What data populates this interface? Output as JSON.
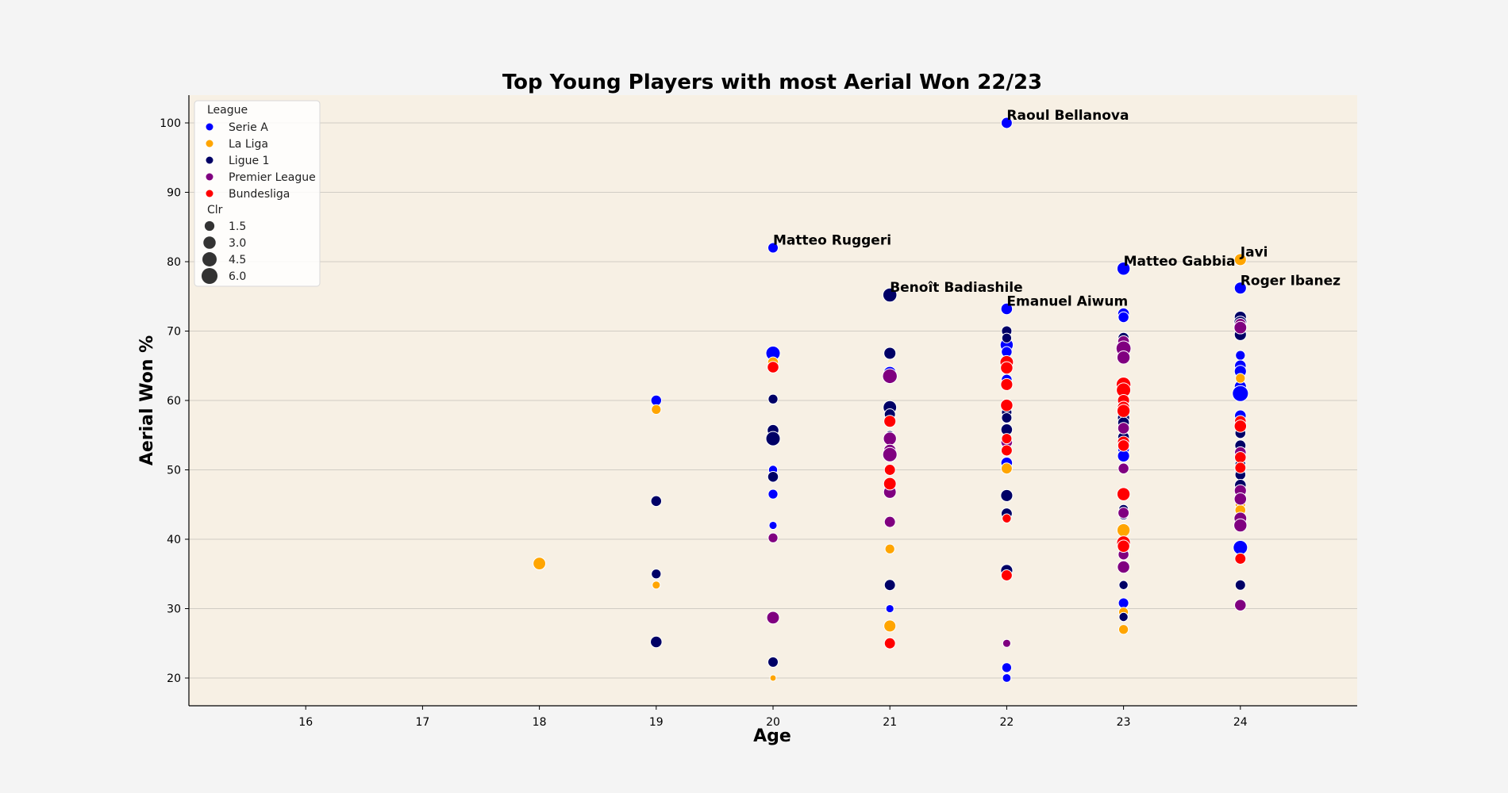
{
  "chart_data": {
    "type": "scatter",
    "title": "Top Young Players with most Aerial Won 22/23",
    "xlabel": "Age",
    "ylabel": "Aerial Won %",
    "xlim": [
      15,
      25
    ],
    "ylim": [
      16,
      104
    ],
    "x_ticks": [
      16,
      17,
      18,
      19,
      20,
      21,
      22,
      23,
      24
    ],
    "y_ticks": [
      20,
      30,
      40,
      50,
      60,
      70,
      80,
      90,
      100
    ],
    "grid": "horizontal",
    "legend_position": "top-left",
    "colors": {
      "background": "#f4f4f4",
      "plot_background": "#f7f0e4",
      "grid": "#d0ccc4"
    },
    "legend": {
      "hue_title": "League",
      "size_title": "Clr",
      "size_entries": [
        1.5,
        3.0,
        4.5,
        6.0
      ]
    },
    "series": [
      {
        "name": "Serie A",
        "color": "#0000ff",
        "points": [
          [
            19,
            60.0,
            2.0
          ],
          [
            20,
            82.0,
            1.8
          ],
          [
            20,
            66.8,
            4.5
          ],
          [
            20,
            50.0,
            1.2
          ],
          [
            20,
            46.5,
            1.5
          ],
          [
            20,
            42.0,
            0.8
          ],
          [
            21,
            64.0,
            3.2
          ],
          [
            21,
            30.0,
            0.8
          ],
          [
            22,
            100.0,
            2.2
          ],
          [
            22,
            73.2,
            2.5
          ],
          [
            22,
            68.0,
            3.5
          ],
          [
            22,
            67.0,
            2.0
          ],
          [
            22,
            63.0,
            2.0
          ],
          [
            22,
            51.0,
            2.5
          ],
          [
            22,
            53.0,
            1.5
          ],
          [
            22,
            21.5,
            1.5
          ],
          [
            22,
            20.0,
            1.0
          ],
          [
            23,
            79.0,
            3.5
          ],
          [
            23,
            72.5,
            2.5
          ],
          [
            23,
            72.0,
            2.0
          ],
          [
            23,
            53.0,
            2.5
          ],
          [
            23,
            52.0,
            2.8
          ],
          [
            23,
            30.8,
            1.8
          ],
          [
            24,
            76.2,
            2.8
          ],
          [
            24,
            66.5,
            1.5
          ],
          [
            24,
            65.0,
            2.5
          ],
          [
            24,
            64.2,
            2.8
          ],
          [
            24,
            62.0,
            2.8
          ],
          [
            24,
            61.0,
            6.0
          ],
          [
            24,
            57.8,
            2.5
          ],
          [
            24,
            56.8,
            2.0
          ],
          [
            24,
            50.0,
            2.2
          ],
          [
            24,
            38.8,
            4.5
          ]
        ]
      },
      {
        "name": "La Liga",
        "color": "#ffa500",
        "points": [
          [
            18,
            36.5,
            3.2
          ],
          [
            19,
            58.7,
            1.5
          ],
          [
            19,
            33.4,
            0.8
          ],
          [
            20,
            65.5,
            2.0
          ],
          [
            20,
            20.0,
            0.3
          ],
          [
            21,
            38.6,
            1.5
          ],
          [
            21,
            27.5,
            2.8
          ],
          [
            22,
            50.2,
            2.2
          ],
          [
            23,
            68.0,
            2.0
          ],
          [
            23,
            41.3,
            3.5
          ],
          [
            23,
            29.5,
            1.5
          ],
          [
            23,
            27.0,
            1.5
          ],
          [
            24,
            80.3,
            2.8
          ],
          [
            24,
            63.2,
            1.5
          ],
          [
            24,
            45.0,
            1.8
          ],
          [
            24,
            44.2,
            2.0
          ]
        ]
      },
      {
        "name": "Ligue 1",
        "color": "#000066",
        "points": [
          [
            19,
            45.5,
            2.0
          ],
          [
            19,
            35.0,
            1.5
          ],
          [
            19,
            25.2,
            2.5
          ],
          [
            20,
            60.2,
            1.5
          ],
          [
            20,
            55.7,
            2.5
          ],
          [
            20,
            54.5,
            4.5
          ],
          [
            20,
            49.0,
            2.0
          ],
          [
            20,
            22.3,
            1.8
          ],
          [
            21,
            75.2,
            4.2
          ],
          [
            21,
            66.8,
            2.8
          ],
          [
            21,
            59.0,
            3.8
          ],
          [
            21,
            58.0,
            2.2
          ],
          [
            21,
            55.0,
            1.2
          ],
          [
            21,
            33.4,
            2.2
          ],
          [
            22,
            70.0,
            1.8
          ],
          [
            22,
            69.0,
            1.5
          ],
          [
            22,
            64.8,
            2.8
          ],
          [
            22,
            58.3,
            1.8
          ],
          [
            22,
            57.5,
            1.8
          ],
          [
            22,
            55.8,
            2.5
          ],
          [
            22,
            46.3,
            2.8
          ],
          [
            22,
            43.7,
            2.2
          ],
          [
            22,
            35.5,
            2.8
          ],
          [
            23,
            69.0,
            2.2
          ],
          [
            23,
            57.5,
            2.8
          ],
          [
            23,
            56.8,
            2.5
          ],
          [
            23,
            54.7,
            2.5
          ],
          [
            23,
            44.3,
            1.5
          ],
          [
            23,
            43.5,
            1.5
          ],
          [
            23,
            33.4,
            1.2
          ],
          [
            23,
            28.8,
            1.2
          ],
          [
            24,
            72.0,
            2.8
          ],
          [
            24,
            71.2,
            3.5
          ],
          [
            24,
            69.5,
            2.8
          ],
          [
            24,
            55.3,
            2.0
          ],
          [
            24,
            53.5,
            2.2
          ],
          [
            24,
            50.8,
            2.0
          ],
          [
            24,
            49.3,
            2.0
          ],
          [
            24,
            47.8,
            2.5
          ],
          [
            24,
            33.4,
            1.8
          ]
        ]
      },
      {
        "name": "Premier League",
        "color": "#800080",
        "points": [
          [
            20,
            40.2,
            1.5
          ],
          [
            20,
            28.7,
            3.2
          ],
          [
            21,
            63.5,
            4.8
          ],
          [
            21,
            54.5,
            3.5
          ],
          [
            21,
            52.8,
            3.0
          ],
          [
            21,
            52.2,
            4.5
          ],
          [
            21,
            46.8,
            3.2
          ],
          [
            21,
            42.5,
            2.2
          ],
          [
            22,
            54.0,
            2.5
          ],
          [
            22,
            25.0,
            0.8
          ],
          [
            23,
            68.5,
            2.5
          ],
          [
            23,
            67.5,
            5.0
          ],
          [
            23,
            66.2,
            3.5
          ],
          [
            23,
            56.0,
            2.5
          ],
          [
            23,
            50.2,
            2.0
          ],
          [
            23,
            43.8,
            2.2
          ],
          [
            23,
            37.8,
            2.0
          ],
          [
            23,
            36.0,
            3.0
          ],
          [
            24,
            71.0,
            2.5
          ],
          [
            24,
            70.5,
            3.2
          ],
          [
            24,
            52.5,
            2.5
          ],
          [
            24,
            47.0,
            2.8
          ],
          [
            24,
            45.8,
            3.0
          ],
          [
            24,
            43.0,
            3.2
          ],
          [
            24,
            42.0,
            3.5
          ],
          [
            24,
            30.5,
            2.5
          ]
        ]
      },
      {
        "name": "Bundesliga",
        "color": "#ff0000",
        "points": [
          [
            20,
            64.8,
            2.5
          ],
          [
            21,
            57.0,
            2.8
          ],
          [
            21,
            50.0,
            2.2
          ],
          [
            21,
            48.0,
            3.2
          ],
          [
            21,
            25.0,
            2.2
          ],
          [
            22,
            65.5,
            3.8
          ],
          [
            22,
            64.7,
            3.0
          ],
          [
            22,
            62.3,
            2.8
          ],
          [
            22,
            59.3,
            3.0
          ],
          [
            22,
            54.5,
            1.8
          ],
          [
            22,
            52.8,
            2.2
          ],
          [
            22,
            43.0,
            1.2
          ],
          [
            22,
            34.8,
            2.2
          ],
          [
            23,
            62.3,
            4.8
          ],
          [
            23,
            61.5,
            4.5
          ],
          [
            23,
            60.0,
            2.8
          ],
          [
            23,
            59.0,
            3.0
          ],
          [
            23,
            58.5,
            3.5
          ],
          [
            23,
            54.0,
            2.8
          ],
          [
            23,
            53.5,
            2.5
          ],
          [
            23,
            46.5,
            3.5
          ],
          [
            23,
            39.5,
            4.0
          ],
          [
            23,
            39.0,
            3.0
          ],
          [
            24,
            57.0,
            2.5
          ],
          [
            24,
            56.3,
            3.0
          ],
          [
            24,
            51.8,
            2.5
          ],
          [
            24,
            50.3,
            2.2
          ],
          [
            24,
            37.2,
            2.2
          ]
        ]
      }
    ],
    "annotations": [
      {
        "text": "Raoul Bellanova",
        "x": 22,
        "y": 100.0
      },
      {
        "text": "Matteo Ruggeri",
        "x": 20,
        "y": 82.0
      },
      {
        "text": "Benoît Badiashile",
        "x": 21,
        "y": 75.2
      },
      {
        "text": "Emanuel Aiwum",
        "x": 22,
        "y": 73.2
      },
      {
        "text": "Matteo Gabbia",
        "x": 23,
        "y": 79.0
      },
      {
        "text": "Javi",
        "x": 24,
        "y": 80.3
      },
      {
        "text": "Roger Ibanez",
        "x": 24,
        "y": 76.2
      }
    ]
  }
}
